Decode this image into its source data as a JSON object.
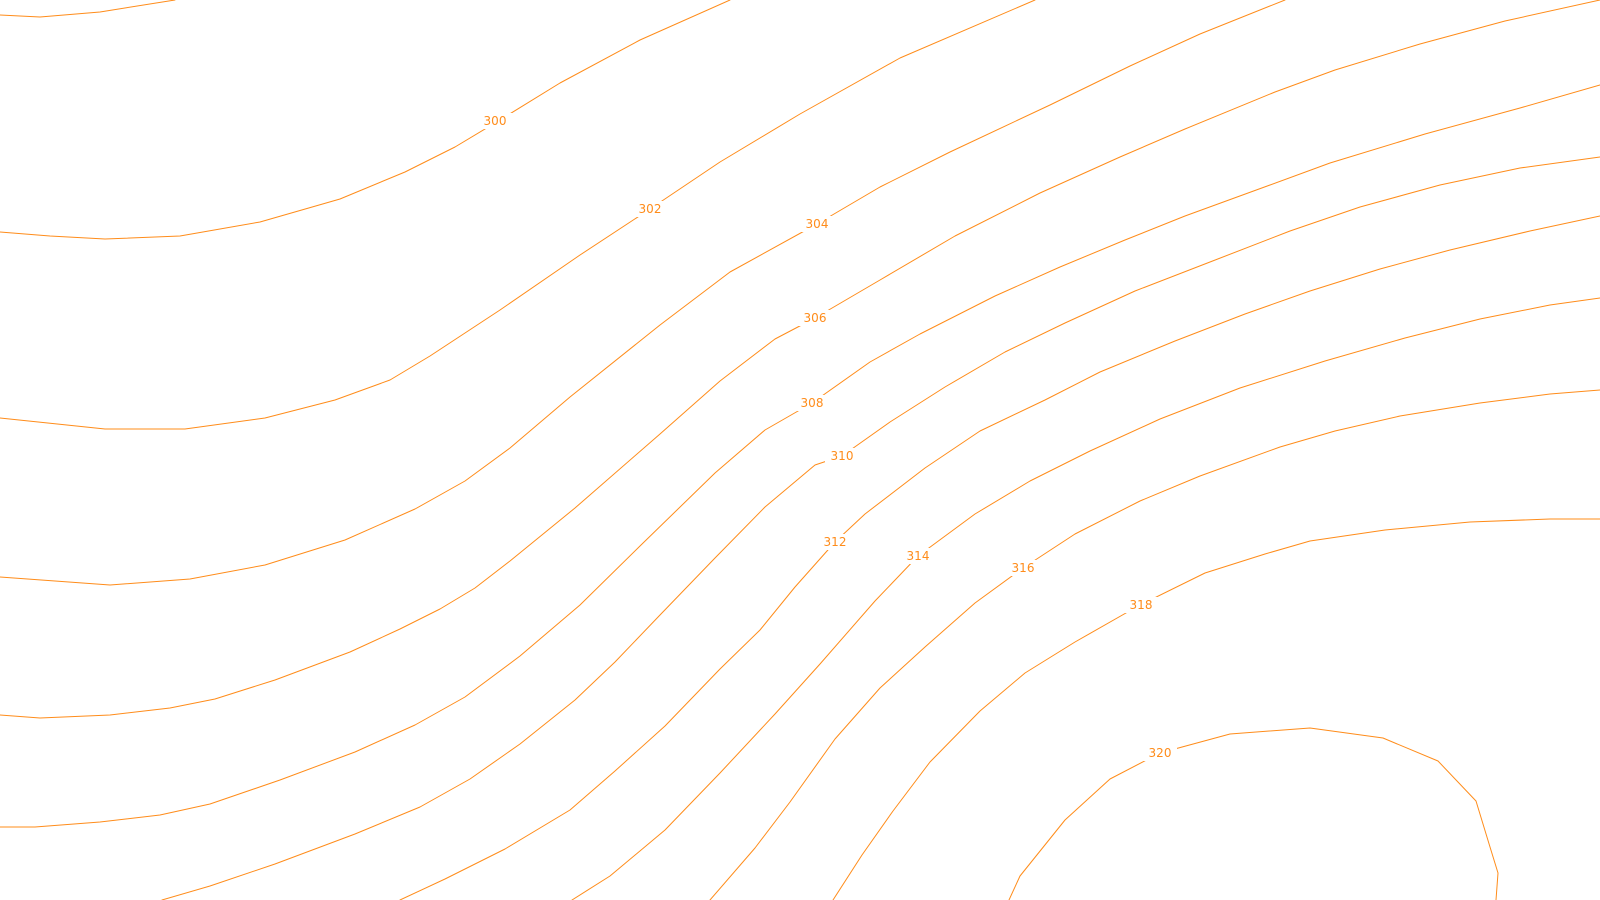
{
  "map": {
    "line_color": "#ff8c1a",
    "background": "#ffffff",
    "contours": [
      {
        "label": "300"
      },
      {
        "label": "302"
      },
      {
        "label": "304"
      },
      {
        "label": "306"
      },
      {
        "label": "308"
      },
      {
        "label": "310"
      },
      {
        "label": "312"
      },
      {
        "label": "314"
      },
      {
        "label": "316"
      },
      {
        "label": "318"
      },
      {
        "label": "320"
      }
    ]
  }
}
